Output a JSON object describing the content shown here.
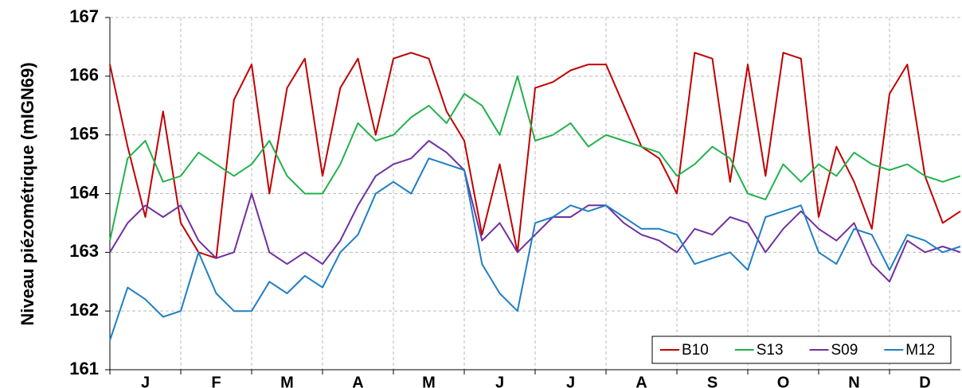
{
  "chart_data": {
    "type": "line",
    "y_label": "Niveau piézométrique (mIGN69)",
    "categories": [
      "J",
      "F",
      "M",
      "A",
      "M",
      "J",
      "J",
      "A",
      "S",
      "O",
      "N",
      "D"
    ],
    "x": [
      0,
      0.25,
      0.5,
      0.75,
      1,
      1.25,
      1.5,
      1.75,
      2,
      2.25,
      2.5,
      2.75,
      3,
      3.25,
      3.5,
      3.75,
      4,
      4.25,
      4.5,
      4.75,
      5,
      5.25,
      5.5,
      5.75,
      6,
      6.25,
      6.5,
      6.75,
      7,
      7.25,
      7.5,
      7.75,
      8,
      8.25,
      8.5,
      8.75,
      9,
      9.25,
      9.5,
      9.75,
      10,
      10.25,
      10.5,
      10.75,
      11,
      11.25,
      11.5,
      11.75,
      12
    ],
    "xlim": [
      0,
      12
    ],
    "ylim": [
      161,
      167
    ],
    "yticks": [
      161,
      162,
      163,
      164,
      165,
      166,
      167
    ],
    "grid": true,
    "legend_position": "lower right",
    "series": [
      {
        "name": "B10",
        "color": "#c00000",
        "values": [
          166.2,
          164.8,
          163.6,
          165.4,
          163.5,
          163.0,
          162.9,
          165.6,
          166.2,
          164.0,
          165.8,
          166.3,
          164.3,
          165.8,
          166.3,
          165.0,
          166.3,
          166.4,
          166.3,
          165.4,
          164.9,
          163.3,
          164.5,
          163.0,
          165.8,
          165.9,
          166.1,
          166.2,
          166.2,
          165.5,
          164.8,
          164.6,
          164.0,
          166.4,
          166.3,
          164.2,
          166.2,
          164.3,
          166.4,
          166.3,
          163.6,
          164.8,
          164.2,
          163.4,
          165.7,
          166.2,
          164.3,
          163.5,
          163.7
        ]
      },
      {
        "name": "S13",
        "color": "#22b24c",
        "values": [
          163.2,
          164.6,
          164.9,
          164.2,
          164.3,
          164.7,
          164.5,
          164.3,
          164.5,
          164.9,
          164.3,
          164.0,
          164.0,
          164.5,
          165.2,
          164.9,
          165.0,
          165.3,
          165.5,
          165.2,
          165.7,
          165.5,
          165.0,
          166.0,
          164.9,
          165.0,
          165.2,
          164.8,
          165.0,
          164.9,
          164.8,
          164.7,
          164.3,
          164.5,
          164.8,
          164.6,
          164.0,
          163.9,
          164.5,
          164.2,
          164.5,
          164.3,
          164.7,
          164.5,
          164.4,
          164.5,
          164.3,
          164.2,
          164.3
        ]
      },
      {
        "name": "S09",
        "color": "#7030a0",
        "values": [
          163.0,
          163.5,
          163.8,
          163.6,
          163.8,
          163.2,
          162.9,
          163.0,
          164.0,
          163.0,
          162.8,
          163.0,
          162.8,
          163.2,
          163.8,
          164.3,
          164.5,
          164.6,
          164.9,
          164.7,
          164.4,
          163.2,
          163.5,
          163.0,
          163.3,
          163.6,
          163.6,
          163.8,
          163.8,
          163.5,
          163.3,
          163.2,
          163.0,
          163.4,
          163.3,
          163.6,
          163.5,
          163.0,
          163.4,
          163.7,
          163.4,
          163.2,
          163.5,
          162.8,
          162.5,
          163.2,
          163.0,
          163.1,
          163.0
        ]
      },
      {
        "name": "M12",
        "color": "#1f7fc4",
        "values": [
          161.5,
          162.4,
          162.2,
          161.9,
          162.0,
          163.0,
          162.3,
          162.0,
          162.0,
          162.5,
          162.3,
          162.6,
          162.4,
          163.0,
          163.3,
          164.0,
          164.2,
          164.0,
          164.6,
          164.5,
          164.4,
          162.8,
          162.3,
          162.0,
          163.5,
          163.6,
          163.8,
          163.7,
          163.8,
          163.6,
          163.4,
          163.4,
          163.3,
          162.8,
          162.9,
          163.0,
          162.7,
          163.6,
          163.7,
          163.8,
          163.0,
          162.8,
          163.4,
          163.3,
          162.7,
          163.3,
          163.2,
          163.0,
          163.1
        ]
      }
    ]
  }
}
